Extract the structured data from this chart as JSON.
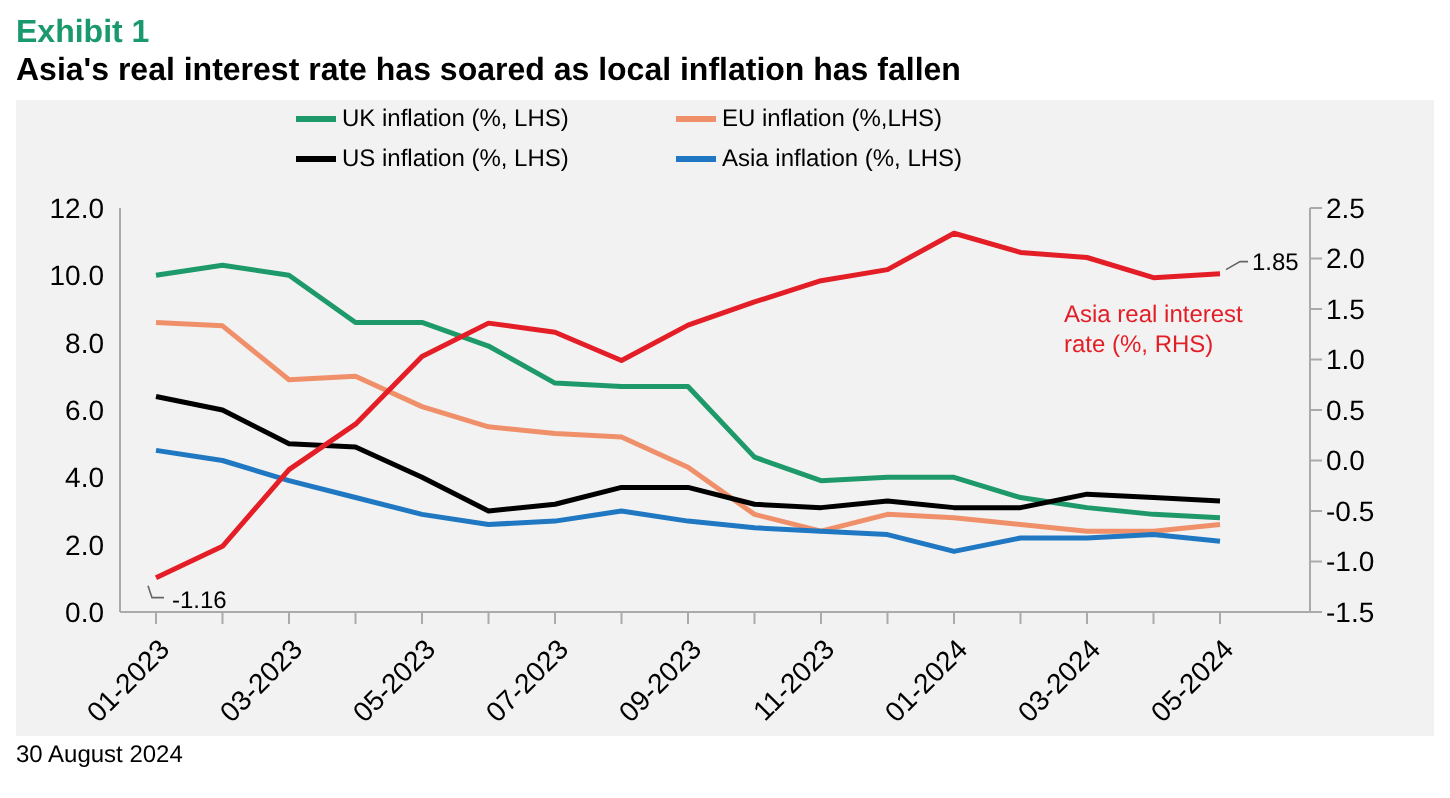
{
  "chart_data": {
    "type": "line",
    "title": "Exhibit 1",
    "subtitle": "Asia's real interest rate has soared as local inflation has fallen",
    "categories": [
      "01-2023",
      null,
      "03-2023",
      null,
      "05-2023",
      null,
      "07-2023",
      null,
      "09-2023",
      null,
      "11-2023",
      null,
      "01-2024",
      null,
      "03-2024",
      null,
      "05-2024"
    ],
    "series": [
      {
        "name": "UK inflation (%, LHS)",
        "color": "#1e9a6a",
        "values": [
          10.0,
          10.3,
          10.0,
          8.6,
          8.6,
          7.9,
          6.8,
          6.7,
          6.7,
          4.6,
          3.9,
          4.0,
          4.0,
          3.4,
          3.1,
          2.9,
          2.8
        ]
      },
      {
        "name": "EU inflation (%,LHS)",
        "color": "#f0906a",
        "values": [
          8.6,
          8.5,
          6.9,
          7.0,
          6.1,
          5.5,
          5.3,
          5.2,
          4.3,
          2.9,
          2.4,
          2.9,
          2.8,
          2.6,
          2.4,
          2.4,
          2.6
        ]
      },
      {
        "name": "US inflation (%, LHS)",
        "color": "#000000",
        "values": [
          6.4,
          6.0,
          5.0,
          4.9,
          4.0,
          3.0,
          3.2,
          3.7,
          3.7,
          3.2,
          3.1,
          3.3,
          3.1,
          3.1,
          3.5,
          3.4,
          3.3
        ]
      },
      {
        "name": "Asia inflation (%, LHS)",
        "color": "#1f78c1",
        "values": [
          4.8,
          4.5,
          3.9,
          3.4,
          2.9,
          2.6,
          2.7,
          3.0,
          2.7,
          2.5,
          2.4,
          2.3,
          1.8,
          2.2,
          2.2,
          2.3,
          2.1
        ]
      },
      {
        "name": "Asia real interest rate (%, RHS)",
        "color": "#e41e26",
        "axis": "y2",
        "values": [
          -1.16,
          -0.85,
          -0.09,
          0.36,
          1.03,
          1.36,
          1.27,
          0.99,
          1.34,
          1.57,
          1.78,
          1.89,
          2.25,
          2.06,
          2.01,
          1.81,
          1.85
        ],
        "value_labels": [
          "-1.16",
          null,
          null,
          null,
          null,
          null,
          null,
          null,
          null,
          null,
          null,
          null,
          null,
          null,
          null,
          null,
          "1.85"
        ]
      }
    ],
    "ylim": [
      0,
      12
    ],
    "yticks": [
      {
        "value": 0,
        "label": "0.0"
      },
      {
        "value": 2,
        "label": "2.0"
      },
      {
        "value": 4,
        "label": "4.0"
      },
      {
        "value": 6,
        "label": "6.0"
      },
      {
        "value": 8,
        "label": "8.0"
      },
      {
        "value": 10,
        "label": "10.0"
      },
      {
        "value": 12,
        "label": "12.0"
      }
    ],
    "y2lim": [
      -1.5,
      2.5
    ],
    "y2ticks": [
      -1.5,
      {
        "value": -1,
        "label": "-1.0"
      },
      -0.5,
      {
        "value": 0,
        "label": "0.0"
      },
      0.5,
      {
        "value": 1,
        "label": "1.0"
      },
      1.5,
      {
        "value": 2,
        "label": "2.0"
      },
      2.5
    ],
    "legend": "top",
    "grid": false,
    "marker": "none",
    "line_style": "solid",
    "annotations": [
      "30 August 2024"
    ]
  }
}
